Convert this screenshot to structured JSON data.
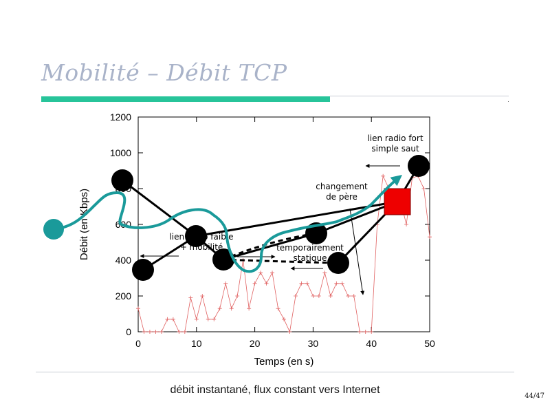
{
  "slide": {
    "title": "Mobilité – Débit TCP",
    "caption": "débit instantané, flux constant vers Internet",
    "page_number": "44/47"
  },
  "colors": {
    "accent_bar": "#27c49a",
    "title_text": "#a9b3c9",
    "data_line": "#e06060",
    "flow_arrow": "#1a9a9a",
    "node": "#000000",
    "marker": "#ee0000"
  },
  "chart_data": {
    "type": "line",
    "xlabel": "Temps (en s)",
    "ylabel": "Débit (en Kbps)",
    "xlim": [
      0,
      50
    ],
    "ylim": [
      0,
      1200
    ],
    "x_ticks": [
      "0",
      "10",
      "20",
      "30",
      "40",
      "50"
    ],
    "y_ticks": [
      "0",
      "200",
      "400",
      "600",
      "800",
      "1000",
      "1200"
    ],
    "grid": false,
    "series": [
      {
        "values": [
          [
            0,
            130
          ],
          [
            1,
            0
          ],
          [
            2,
            0
          ],
          [
            3,
            0
          ],
          [
            4,
            0
          ],
          [
            5,
            70
          ],
          [
            6,
            70
          ],
          [
            7,
            0
          ],
          [
            8,
            0
          ],
          [
            9,
            190
          ],
          [
            10,
            70
          ],
          [
            11,
            200
          ],
          [
            12,
            70
          ],
          [
            13,
            70
          ],
          [
            14,
            130
          ],
          [
            15,
            270
          ],
          [
            16,
            130
          ],
          [
            17,
            200
          ],
          [
            18,
            400
          ],
          [
            19,
            130
          ],
          [
            20,
            270
          ],
          [
            21,
            330
          ],
          [
            22,
            270
          ],
          [
            23,
            330
          ],
          [
            24,
            130
          ],
          [
            25,
            70
          ],
          [
            26,
            0
          ],
          [
            27,
            200
          ],
          [
            28,
            270
          ],
          [
            29,
            270
          ],
          [
            30,
            200
          ],
          [
            31,
            200
          ],
          [
            32,
            330
          ],
          [
            33,
            200
          ],
          [
            34,
            270
          ],
          [
            35,
            270
          ],
          [
            36,
            200
          ],
          [
            37,
            200
          ],
          [
            38,
            0
          ],
          [
            39,
            0
          ],
          [
            40,
            0
          ],
          [
            41,
            600
          ],
          [
            42,
            870
          ],
          [
            43,
            800
          ],
          [
            44,
            730
          ],
          [
            45,
            730
          ],
          [
            46,
            600
          ],
          [
            47,
            860
          ],
          [
            48,
            870
          ],
          [
            49,
            800
          ],
          [
            50,
            530
          ]
        ]
      }
    ],
    "annotations": [
      {
        "id": "fort",
        "lines": [
          "lien radio fort",
          "simple saut"
        ]
      },
      {
        "id": "changement",
        "lines": [
          "changement",
          "de père"
        ]
      },
      {
        "id": "faible",
        "lines": [
          "lien radio faible",
          "+ mobilité"
        ]
      },
      {
        "id": "statique",
        "lines": [
          "temporairement",
          "statique"
        ]
      }
    ]
  }
}
